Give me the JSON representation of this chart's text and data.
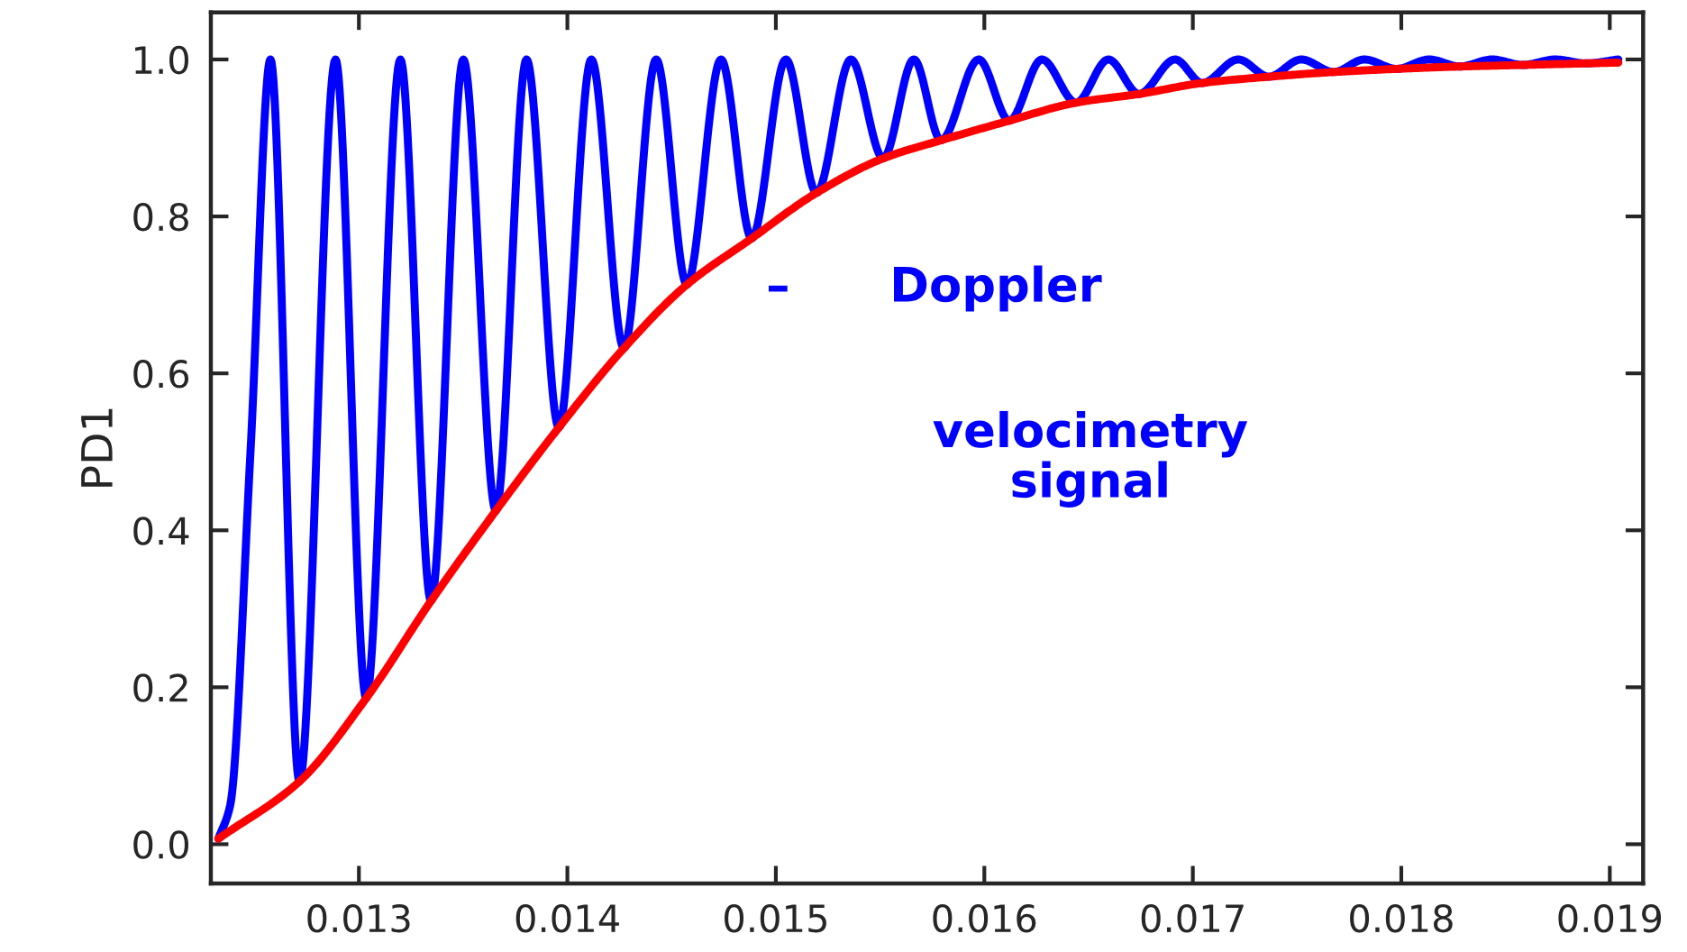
{
  "chart_data": {
    "type": "line",
    "ylabel": "PD1",
    "xlim": [
      0.01229,
      0.01916
    ],
    "ylim": [
      -0.05,
      1.06
    ],
    "xticks": [
      0.013,
      0.014,
      0.015,
      0.016,
      0.017,
      0.018,
      0.019
    ],
    "yticks": [
      {
        "value": 0,
        "label": "0.0"
      },
      {
        "value": 0.2,
        "label": "0.2"
      },
      {
        "value": 0.4,
        "label": "0.4"
      },
      {
        "value": 0.6,
        "label": "0.6"
      },
      {
        "value": 0.8,
        "label": "0.8"
      },
      {
        "value": 1,
        "label": "1.0"
      }
    ],
    "grid": false,
    "legend": false,
    "series": [
      {
        "color": "#0000ff",
        "x": [
          0.012326,
          0.012383,
          0.01248,
          0.012576,
          0.012715,
          0.012888,
          0.013035,
          0.013199,
          0.013346,
          0.013501,
          0.013657,
          0.013804,
          0.013959,
          0.014115,
          0.014271,
          0.014426,
          0.014573,
          0.014737,
          0.014884,
          0.015048,
          0.015195,
          0.01536,
          0.015515,
          0.015662,
          0.015792,
          0.015973,
          0.01612,
          0.016276,
          0.01644,
          0.016595,
          0.016742,
          0.016915,
          0.017045,
          0.017218,
          0.017365,
          0.01752,
          0.017676,
          0.017823,
          0.017978,
          0.018134,
          0.018281,
          0.018436,
          0.018583,
          0.018739,
          0.018886,
          0.019041
        ],
        "values": [
          0.007,
          0.05,
          0.5,
          1.0,
          0.08,
          1.0,
          0.186,
          1.0,
          0.31,
          1.0,
          0.425,
          1.0,
          0.531,
          1.0,
          0.632,
          1.0,
          0.713,
          1.0,
          0.772,
          1.0,
          0.83,
          1.0,
          0.874,
          1.0,
          0.897,
          1.0,
          0.922,
          1.0,
          0.945,
          1.0,
          0.956,
          1.0,
          0.97,
          1.0,
          0.978,
          1.0,
          0.984,
          1.0,
          0.988,
          1.0,
          0.991,
          1.0,
          0.993,
          1.0,
          0.995,
          1.0
        ]
      },
      {
        "color": "#ff0000",
        "x": [
          0.012326,
          0.012715,
          0.013035,
          0.013346,
          0.013657,
          0.013959,
          0.014271,
          0.014573,
          0.014884,
          0.015195,
          0.015515,
          0.015792,
          0.01612,
          0.01644,
          0.016742,
          0.017045,
          0.017365,
          0.017676,
          0.017978,
          0.018281,
          0.018583,
          0.018886,
          0.019041
        ],
        "values": [
          0.007,
          0.08,
          0.186,
          0.31,
          0.425,
          0.531,
          0.632,
          0.713,
          0.772,
          0.83,
          0.874,
          0.897,
          0.922,
          0.945,
          0.956,
          0.97,
          0.978,
          0.984,
          0.988,
          0.991,
          0.993,
          0.995,
          0.996
        ]
      }
    ],
    "annotations": [
      "–",
      "Doppler",
      "velocimetry\nsignal"
    ]
  }
}
